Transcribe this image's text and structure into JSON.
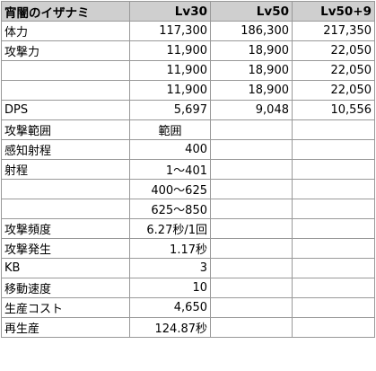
{
  "header": [
    "宵闇のイザナミ",
    "Lv30",
    "Lv50",
    "Lv50+9"
  ],
  "rows": [
    [
      "体力",
      "117,300",
      "186,300",
      "217,350"
    ],
    [
      "攻撃力",
      "11,900",
      "18,900",
      "22,050"
    ],
    [
      "",
      "11,900",
      "18,900",
      "22,050"
    ],
    [
      "",
      "11,900",
      "18,900",
      "22,050"
    ],
    [
      "DPS",
      "5,697",
      "9,048",
      "10,556"
    ],
    [
      "攻撃範囲",
      "範囲",
      "",
      ""
    ],
    [
      "感知射程",
      "400",
      "",
      ""
    ],
    [
      "射程",
      "1～401",
      "",
      ""
    ],
    [
      "",
      "400～625",
      "",
      ""
    ],
    [
      "",
      "625～850",
      "",
      ""
    ],
    [
      "攻撃頻度",
      "6.27秒/1回",
      "",
      ""
    ],
    [
      "攻撃発生",
      "1.17秒",
      "",
      ""
    ],
    [
      "KB",
      "3",
      "",
      ""
    ],
    [
      "移動速度",
      "10",
      "",
      ""
    ],
    [
      "生産コスト",
      "4,650",
      "",
      ""
    ],
    [
      "再生産",
      "124.87秒",
      "",
      ""
    ]
  ]
}
